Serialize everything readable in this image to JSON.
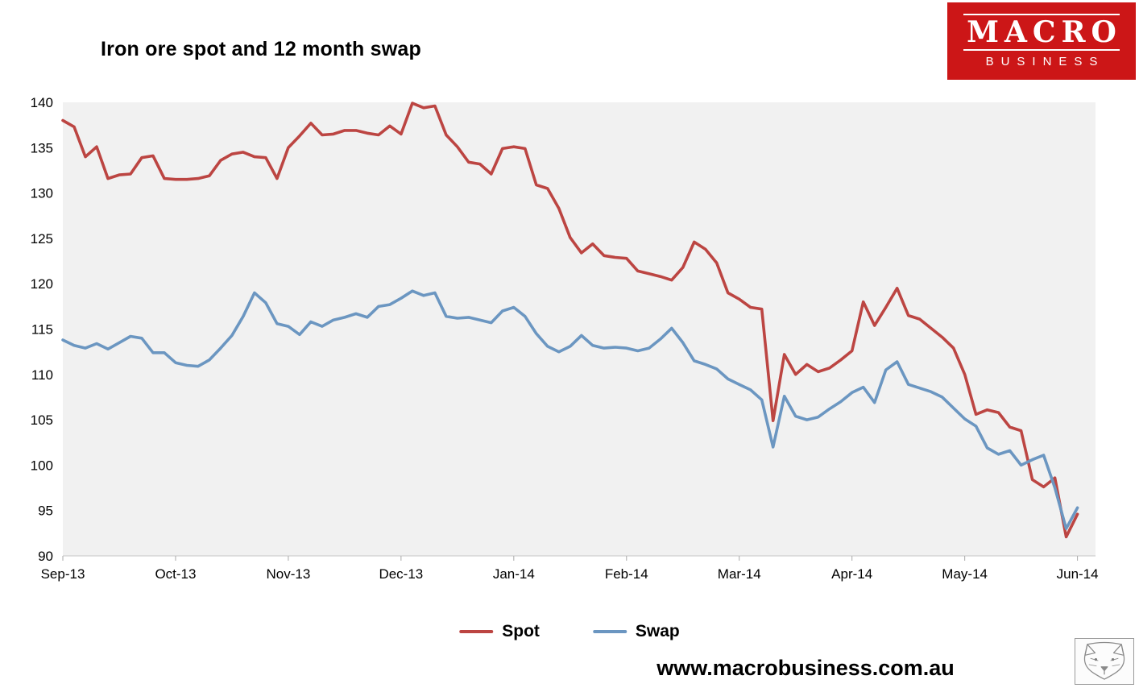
{
  "page": {
    "footer_url": "www.macrobusiness.com.au"
  },
  "logo": {
    "line1": "MACRO",
    "line2": "BUSINESS",
    "bg_color": "#cc1617"
  },
  "chart_data": {
    "type": "line",
    "title": "Iron ore spot and 12 month swap",
    "xlabel": "",
    "ylabel": "",
    "xticklabels": [
      "Sep-13",
      "Oct-13",
      "Nov-13",
      "Dec-13",
      "Jan-14",
      "Feb-14",
      "Mar-14",
      "Apr-14",
      "May-14",
      "Jun-14"
    ],
    "xtick_positions": [
      0,
      1,
      2,
      3,
      4,
      5,
      6,
      7,
      8,
      9
    ],
    "xlim": [
      0,
      9.16
    ],
    "ylim": [
      90,
      140
    ],
    "yticks": [
      90,
      95,
      100,
      105,
      110,
      115,
      120,
      125,
      130,
      135,
      140
    ],
    "grid": false,
    "plot_bg": "#f1f1f1",
    "legend_position": "bottom",
    "x_unit": "months since Sep-13",
    "x_step": 0.1,
    "series": [
      {
        "name": "Spot",
        "color": "#bc4542",
        "values": [
          138.0,
          137.3,
          134.0,
          135.1,
          131.6,
          132.0,
          132.1,
          133.9,
          134.1,
          131.6,
          131.5,
          131.5,
          131.6,
          131.9,
          133.6,
          134.3,
          134.5,
          134.0,
          133.9,
          131.6,
          135.0,
          136.3,
          137.7,
          136.4,
          136.5,
          136.9,
          136.9,
          136.6,
          136.4,
          137.4,
          136.5,
          139.9,
          139.4,
          139.6,
          136.4,
          135.1,
          133.4,
          133.2,
          132.1,
          134.9,
          135.1,
          134.9,
          130.9,
          130.5,
          128.3,
          125.1,
          123.4,
          124.4,
          123.1,
          122.9,
          122.8,
          121.4,
          121.1,
          120.8,
          120.4,
          121.8,
          124.6,
          123.8,
          122.3,
          119.0,
          118.3,
          117.4,
          117.2,
          104.9,
          112.2,
          110.0,
          111.1,
          110.3,
          110.7,
          111.6,
          112.6,
          118.0,
          115.4,
          117.4,
          119.5,
          116.5,
          116.1,
          115.1,
          114.1,
          112.9,
          110.0,
          105.6,
          106.1,
          105.8,
          104.2,
          103.8,
          98.4,
          97.6,
          98.6,
          92.1,
          94.6
        ]
      },
      {
        "name": "Swap",
        "color": "#6b96c1",
        "values": [
          113.8,
          113.2,
          112.9,
          113.4,
          112.8,
          113.5,
          114.2,
          114.0,
          112.4,
          112.4,
          111.3,
          111.0,
          110.9,
          111.6,
          112.9,
          114.3,
          116.4,
          119.0,
          117.9,
          115.6,
          115.3,
          114.4,
          115.8,
          115.3,
          116.0,
          116.3,
          116.7,
          116.3,
          117.5,
          117.7,
          118.4,
          119.2,
          118.7,
          119.0,
          116.4,
          116.2,
          116.3,
          116.0,
          115.7,
          117.0,
          117.4,
          116.4,
          114.5,
          113.1,
          112.5,
          113.1,
          114.3,
          113.2,
          112.9,
          113.0,
          112.9,
          112.6,
          112.9,
          113.9,
          115.1,
          113.5,
          111.5,
          111.1,
          110.6,
          109.5,
          108.9,
          108.3,
          107.2,
          102.0,
          107.6,
          105.4,
          105.0,
          105.3,
          106.2,
          107.0,
          108.0,
          108.6,
          106.9,
          110.5,
          111.4,
          108.9,
          108.5,
          108.1,
          107.5,
          106.3,
          105.1,
          104.3,
          101.9,
          101.2,
          101.6,
          100.0,
          100.6,
          101.1,
          97.5,
          93.0,
          95.3
        ]
      }
    ]
  }
}
